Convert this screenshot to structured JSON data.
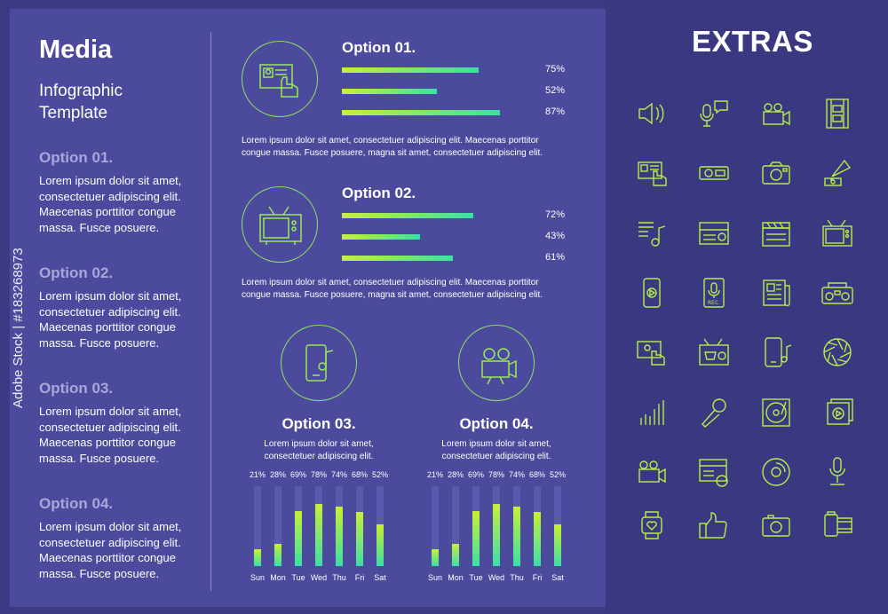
{
  "header": {
    "title": "Media",
    "subtitle": "Infographic Template"
  },
  "left_options": [
    {
      "heading": "Option 01.",
      "text": "Lorem ipsum dolor sit amet, consectetuer adipiscing elit. Maecenas porttitor congue massa. Fusce posuere."
    },
    {
      "heading": "Option 02.",
      "text": "Lorem ipsum dolor sit amet, consectetuer adipiscing elit. Maecenas porttitor congue massa. Fusce posuere."
    },
    {
      "heading": "Option 03.",
      "text": "Lorem ipsum dolor sit amet, consectetuer adipiscing elit. Maecenas porttitor congue massa. Fusce posuere."
    },
    {
      "heading": "Option 04.",
      "text": "Lorem ipsum dolor sit amet, consectetuer adipiscing elit. Maecenas porttitor congue massa. Fusce posuere."
    }
  ],
  "option1": {
    "title": "Option 01.",
    "icon": "id-card-icon",
    "bars": [
      {
        "label": "75%",
        "value": 75
      },
      {
        "label": "52%",
        "value": 52
      },
      {
        "label": "87%",
        "value": 87
      }
    ],
    "desc": "Lorem ipsum dolor sit amet, consectetuer adipiscing elit. Maecenas porttitor congue massa. Fusce posuere, magna sit amet, consectetuer adipiscing elit."
  },
  "option2": {
    "title": "Option 02.",
    "icon": "tv-icon",
    "bars": [
      {
        "label": "72%",
        "value": 72
      },
      {
        "label": "43%",
        "value": 43
      },
      {
        "label": "61%",
        "value": 61
      }
    ],
    "desc": "Lorem ipsum dolor sit amet, consectetuer adipiscing elit. Maecenas porttitor congue massa. Fusce posuere, magna sit amet, consectetuer adipiscing elit."
  },
  "option3": {
    "title": "Option 03.",
    "icon": "phone-music-icon",
    "desc": "Lorem ipsum dolor sit amet, consectetuer adipiscing elit."
  },
  "option4": {
    "title": "Option 04.",
    "icon": "video-camera-icon",
    "desc": "Lorem ipsum dolor sit amet, consectetuer adipiscing elit."
  },
  "chart_data": [
    {
      "type": "bar",
      "categories": [
        "Sun",
        "Mon",
        "Tue",
        "Wed",
        "Thu",
        "Fri",
        "Sat"
      ],
      "values": [
        21,
        28,
        69,
        78,
        74,
        68,
        52
      ],
      "labels": [
        "21%",
        "28%",
        "69%",
        "78%",
        "74%",
        "68%",
        "52%"
      ],
      "ylim": [
        0,
        100
      ]
    },
    {
      "type": "bar",
      "categories": [
        "Sun",
        "Mon",
        "Tue",
        "Wed",
        "Thu",
        "Fri",
        "Sat"
      ],
      "values": [
        21,
        28,
        69,
        78,
        74,
        68,
        52
      ],
      "labels": [
        "21%",
        "28%",
        "69%",
        "78%",
        "74%",
        "68%",
        "52%"
      ],
      "ylim": [
        0,
        100
      ]
    }
  ],
  "extras": {
    "title": "EXTRAS",
    "icons": [
      "speaker-icon",
      "podcast-microphone-icon",
      "movie-camera-icon",
      "film-strip-icon",
      "id-card-icon",
      "radio-receiver-icon",
      "photo-camera-icon",
      "gramophone-icon",
      "music-playlist-icon",
      "news-radio-icon",
      "clapperboard-icon",
      "tv-icon",
      "phone-play-icon",
      "rec-microphone-icon",
      "newspaper-icon",
      "boombox-icon",
      "video-call-icon",
      "tv-shop-icon",
      "phone-music-icon",
      "aperture-icon",
      "signal-bars-icon",
      "handheld-microphone-icon",
      "vinyl-player-icon",
      "video-stack-icon",
      "video-camera-icon",
      "news-globe-icon",
      "cd-disc-icon",
      "studio-microphone-icon",
      "smartwatch-heart-icon",
      "thumbs-up-icon",
      "compact-camera-icon",
      "film-roll-icon"
    ]
  },
  "stock_id": "Adobe Stock | #183268973",
  "colors": {
    "background": "#3c3a82",
    "panel": "#4c4a9c",
    "accent_green": "#8ee35e",
    "accent_yellow": "#c8f034",
    "accent_teal": "#3be0a6",
    "muted_heading": "#a9a7d9"
  }
}
